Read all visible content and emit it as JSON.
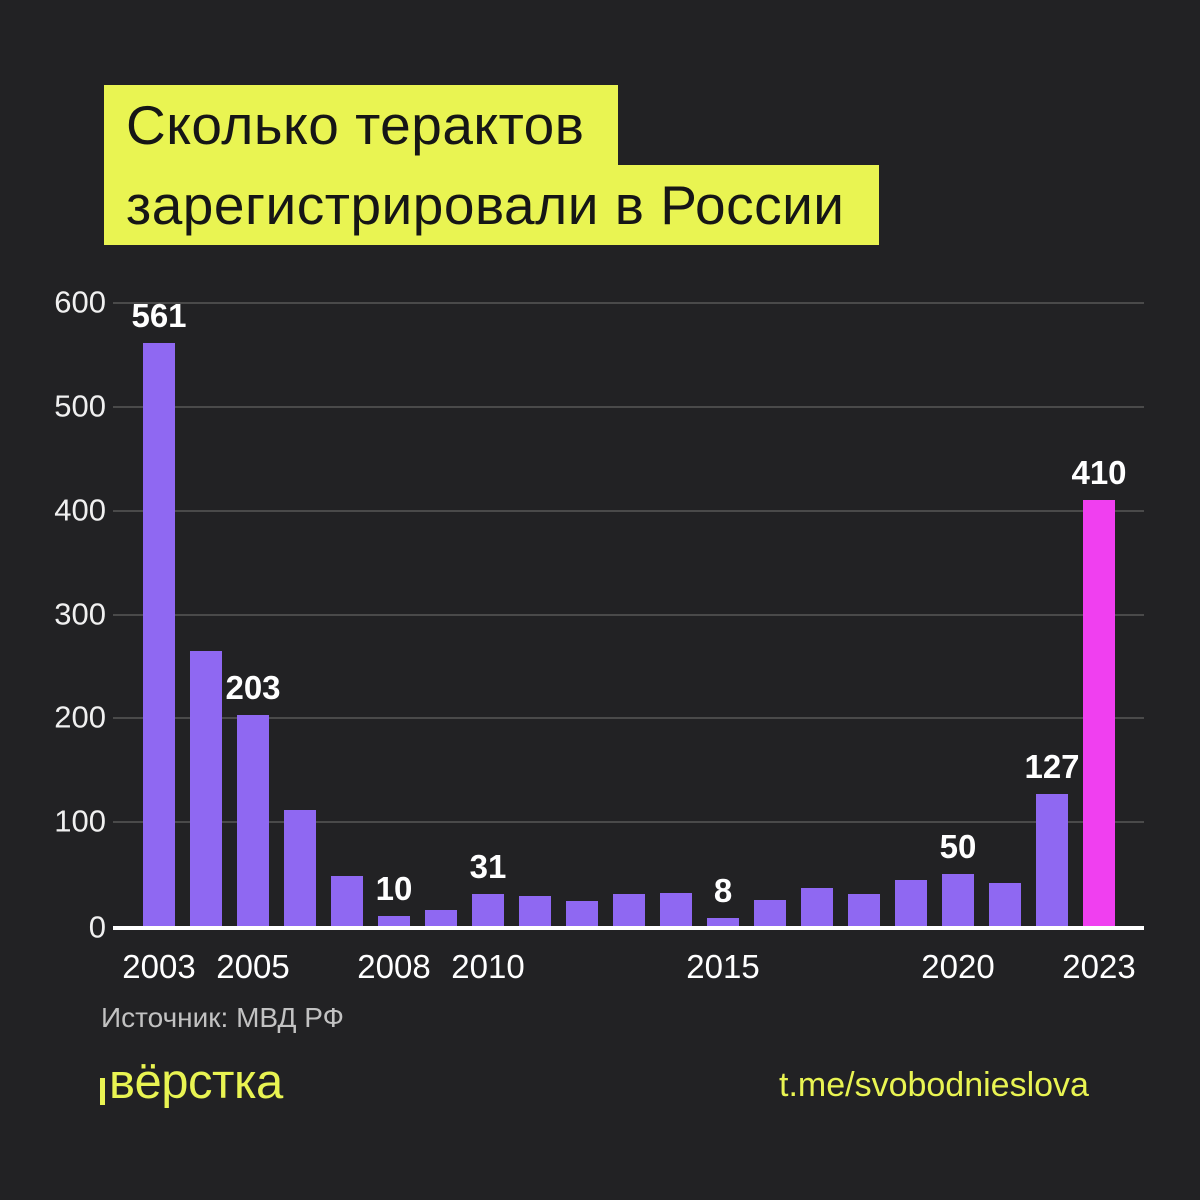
{
  "page": {
    "background": "#222224"
  },
  "title": {
    "line1": "Сколько терактов",
    "line2": "зарегистрировали в России",
    "highlight_color": "#E9F452",
    "text_color": "#161616"
  },
  "chart_data": {
    "type": "bar",
    "title": "Сколько терактов зарегистрировали в России",
    "categories": [
      "2003",
      "2004",
      "2005",
      "2006",
      "2007",
      "2008",
      "2009",
      "2010",
      "2011",
      "2012",
      "2013",
      "2014",
      "2015",
      "2016",
      "2017",
      "2018",
      "2019",
      "2020",
      "2021",
      "2022",
      "2023"
    ],
    "values": [
      561,
      265,
      203,
      112,
      48,
      10,
      15,
      31,
      29,
      24,
      31,
      32,
      8,
      25,
      37,
      31,
      44,
      50,
      41,
      127,
      410
    ],
    "ylim": [
      0,
      600
    ],
    "y_ticks": [
      600,
      500,
      400,
      300,
      200,
      100,
      0
    ],
    "grid": true,
    "legend": false,
    "bar_color": "#8F68F2",
    "highlight_bar_color": "#F03FF0",
    "highlight_index": 20,
    "value_labels": [
      {
        "index": 0,
        "label": "561"
      },
      {
        "index": 2,
        "label": "203"
      },
      {
        "index": 5,
        "label": "10"
      },
      {
        "index": 7,
        "label": "31"
      },
      {
        "index": 12,
        "label": "8"
      },
      {
        "index": 17,
        "label": "50"
      },
      {
        "index": 19,
        "label": "127"
      },
      {
        "index": 20,
        "label": "410"
      }
    ],
    "x_ticks": [
      {
        "index": 0,
        "label": "2003"
      },
      {
        "index": 2,
        "label": "2005"
      },
      {
        "index": 5,
        "label": "2008"
      },
      {
        "index": 7,
        "label": "2010"
      },
      {
        "index": 12,
        "label": "2015"
      },
      {
        "index": 17,
        "label": "2020"
      },
      {
        "index": 20,
        "label": "2023"
      }
    ],
    "axis_color": "#ffffff",
    "gridline_color": "#4a4a4a",
    "label_color": "#ffffff"
  },
  "footer": {
    "source": "Источник: МВД РФ",
    "logo": "вёрстка",
    "telegram": "t.me/svobodnieslova"
  }
}
